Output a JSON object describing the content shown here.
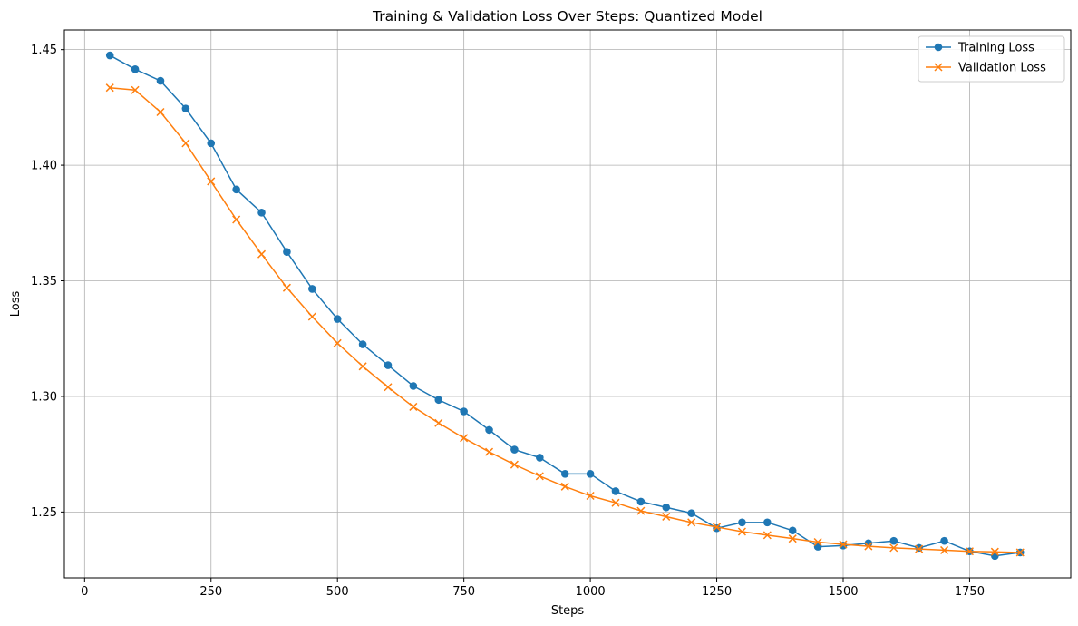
{
  "chart_data": {
    "type": "line",
    "title": "Training & Validation Loss Over Steps: Quantized Model",
    "xlabel": "Steps",
    "ylabel": "Loss",
    "xlim": [
      -40,
      1950
    ],
    "ylim": [
      1.2215,
      1.4585
    ],
    "xticks": [
      0,
      250,
      500,
      750,
      1000,
      1250,
      1500,
      1750
    ],
    "xtick_labels": [
      "0",
      "250",
      "500",
      "750",
      "1000",
      "1250",
      "1500",
      "1750"
    ],
    "yticks": [
      1.25,
      1.3,
      1.35,
      1.4,
      1.45
    ],
    "ytick_labels": [
      "1.25",
      "1.30",
      "1.35",
      "1.40",
      "1.45"
    ],
    "grid": true,
    "legend_position": "top-right",
    "x": [
      50,
      100,
      150,
      200,
      250,
      300,
      350,
      400,
      450,
      500,
      550,
      600,
      650,
      700,
      750,
      800,
      850,
      900,
      950,
      1000,
      1050,
      1100,
      1150,
      1200,
      1250,
      1300,
      1350,
      1400,
      1450,
      1500,
      1550,
      1600,
      1650,
      1700,
      1750,
      1800,
      1850
    ],
    "series": [
      {
        "name": "Training Loss",
        "color": "#1f77b4",
        "marker": "circle",
        "values": [
          1.4475,
          1.4415,
          1.4365,
          1.4245,
          1.4095,
          1.3895,
          1.3795,
          1.3625,
          1.3465,
          1.3335,
          1.3225,
          1.3135,
          1.3045,
          1.2985,
          1.2935,
          1.2855,
          1.277,
          1.2735,
          1.2665,
          1.2665,
          1.259,
          1.2545,
          1.252,
          1.2495,
          1.243,
          1.2455,
          1.2455,
          1.242,
          1.235,
          1.2355,
          1.2365,
          1.2375,
          1.2345,
          1.2375,
          1.233,
          1.231,
          1.2325
        ]
      },
      {
        "name": "Validation Loss",
        "color": "#ff7f0e",
        "marker": "x",
        "values": [
          1.4335,
          1.4325,
          1.423,
          1.4095,
          1.393,
          1.3765,
          1.3615,
          1.347,
          1.3345,
          1.323,
          1.313,
          1.304,
          1.2955,
          1.2885,
          1.282,
          1.276,
          1.2705,
          1.2655,
          1.261,
          1.257,
          1.254,
          1.2505,
          1.248,
          1.2455,
          1.2435,
          1.2415,
          1.24,
          1.2385,
          1.237,
          1.236,
          1.2352,
          1.2345,
          1.234,
          1.2335,
          1.233,
          1.2328,
          1.2325
        ]
      }
    ]
  }
}
